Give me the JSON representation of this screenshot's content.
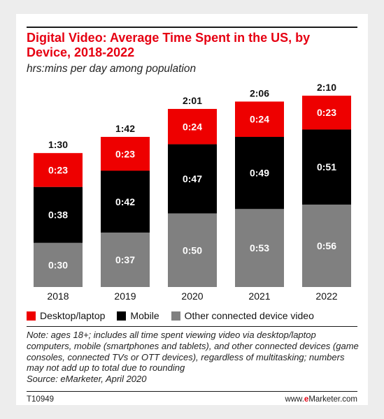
{
  "title": "Digital Video: Average Time Spent in the US, by Device, 2018-2022",
  "subtitle": "hrs:mins per day among population",
  "note": "Note: ages 18+; includes all time spent viewing video via desktop/laptop computers, mobile (smartphones and tablets), and other connected devices (game consoles, connected TVs or OTT devices), regardless of multitasking; numbers may not add up to total due to rounding",
  "source": "Source: eMarketer, April 2020",
  "footer": {
    "id": "T10949",
    "site_prefix": "www.",
    "site_brand": "e",
    "site_suffix": "Marketer.com"
  },
  "colors": {
    "accent": "#e60012",
    "desktop": "#ee0000",
    "mobile": "#000000",
    "other": "#808080"
  },
  "chart_data": {
    "type": "bar",
    "stacked": true,
    "categories": [
      "2018",
      "2019",
      "2020",
      "2021",
      "2022"
    ],
    "series": [
      {
        "name": "Other connected device video",
        "values": [
          30,
          37,
          50,
          53,
          56
        ],
        "labels": [
          "0:30",
          "0:37",
          "0:50",
          "0:53",
          "0:56"
        ],
        "color": "#808080"
      },
      {
        "name": "Mobile",
        "values": [
          38,
          42,
          47,
          49,
          51
        ],
        "labels": [
          "0:38",
          "0:42",
          "0:47",
          "0:49",
          "0:51"
        ],
        "color": "#000000"
      },
      {
        "name": "Desktop/laptop",
        "values": [
          23,
          23,
          24,
          24,
          23
        ],
        "labels": [
          "0:23",
          "0:23",
          "0:24",
          "0:24",
          "0:23"
        ],
        "color": "#ee0000"
      }
    ],
    "totals": [
      90,
      102,
      121,
      126,
      130
    ],
    "total_labels": [
      "1:30",
      "1:42",
      "2:01",
      "2:06",
      "2:10"
    ],
    "unit": "minutes per day",
    "ylim": [
      0,
      130
    ],
    "grid": false,
    "legend_position": "bottom-left"
  }
}
